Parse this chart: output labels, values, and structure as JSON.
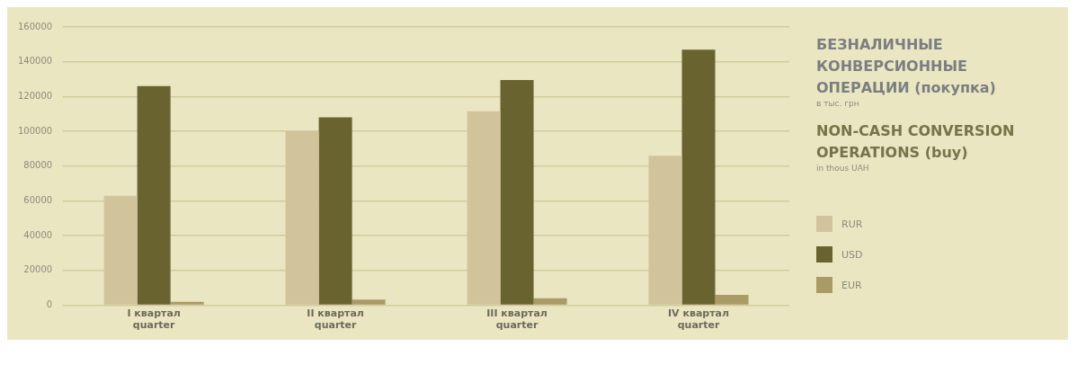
{
  "chart_data": {
    "type": "bar",
    "title": "БЕЗНАЛИЧНЫЕ КОНВЕРСИОННЫЕ ОПЕРАЦИИ (покупка)",
    "subtitle": "в тыс. грн",
    "annotations": [
      "NON-CASH CONVERSION OPERATIONS (buy)",
      "in thous UAH"
    ],
    "categories": [
      "I квартал\nquarter",
      "II квартал\nquarter",
      "III квартал\nquarter",
      "IV квартал\nquarter"
    ],
    "series": [
      {
        "name": "RUR",
        "color": "#d1c49c",
        "values": [
          63000,
          100000,
          111500,
          86000
        ]
      },
      {
        "name": "USD",
        "color": "#69642f",
        "values": [
          126000,
          108000,
          129500,
          147000
        ]
      },
      {
        "name": "EUR",
        "color": "#a89b66",
        "values": [
          2000,
          3300,
          4000,
          6000
        ]
      }
    ],
    "ylim": [
      0,
      160000
    ],
    "yticks": [
      0,
      20000,
      40000,
      60000,
      80000,
      100000,
      120000,
      140000,
      160000
    ],
    "grid": "y",
    "legend": "right"
  }
}
